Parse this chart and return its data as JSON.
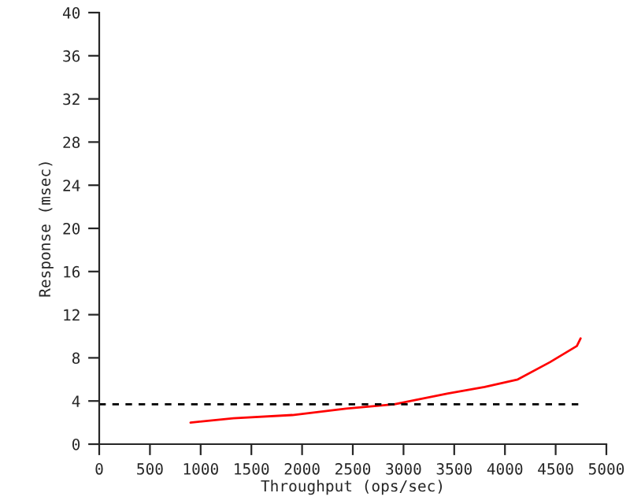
{
  "chart_data": {
    "type": "line",
    "xlabel": "Throughput (ops/sec)",
    "ylabel": "Response (msec)",
    "xlim": [
      0,
      5000
    ],
    "xticks": [
      0,
      500,
      1000,
      1500,
      2000,
      2500,
      3000,
      3500,
      4000,
      4500,
      5000
    ],
    "ylim": [
      0,
      40
    ],
    "yticks": [
      0,
      4,
      8,
      12,
      16,
      20,
      24,
      28,
      32,
      36,
      40
    ],
    "grid": false,
    "legend": false,
    "series": [
      {
        "color": "#ff0000",
        "line_style": "solid",
        "x": [
          900,
          1323,
          1905,
          2434,
          2910,
          3439,
          3800,
          4127,
          4444,
          4709,
          4746
        ],
        "values": [
          2.0,
          2.4,
          2.7,
          3.3,
          3.7,
          4.7,
          5.3,
          6.0,
          7.6,
          9.1,
          9.8
        ]
      },
      {
        "color": "#000000",
        "line_style": "dashed",
        "x": [
          0,
          4746
        ],
        "values": [
          3.7,
          3.7
        ]
      }
    ]
  }
}
